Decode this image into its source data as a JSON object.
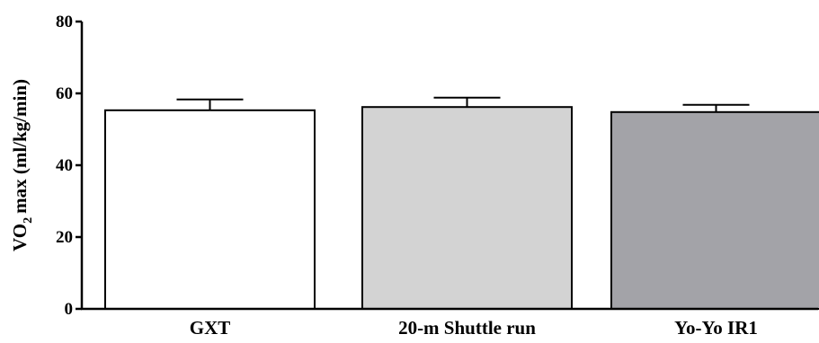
{
  "chart_data": {
    "type": "bar",
    "title": "",
    "xlabel": "",
    "ylabel": {
      "main": "VO",
      "subscript": "2",
      "rest": "max (ml/kg/min)"
    },
    "ylim": [
      0,
      80
    ],
    "yticks": [
      0,
      20,
      40,
      60,
      80
    ],
    "grid": false,
    "categories": [
      "GXT",
      "20-m Shuttle run",
      "Yo-Yo IR1"
    ],
    "values": [
      55.3,
      56.2,
      54.8
    ],
    "errors": [
      3.0,
      2.6,
      2.0
    ],
    "colors": [
      "#ffffff",
      "#d3d3d3",
      "#a3a3a8"
    ],
    "edge_color": "#000000"
  }
}
